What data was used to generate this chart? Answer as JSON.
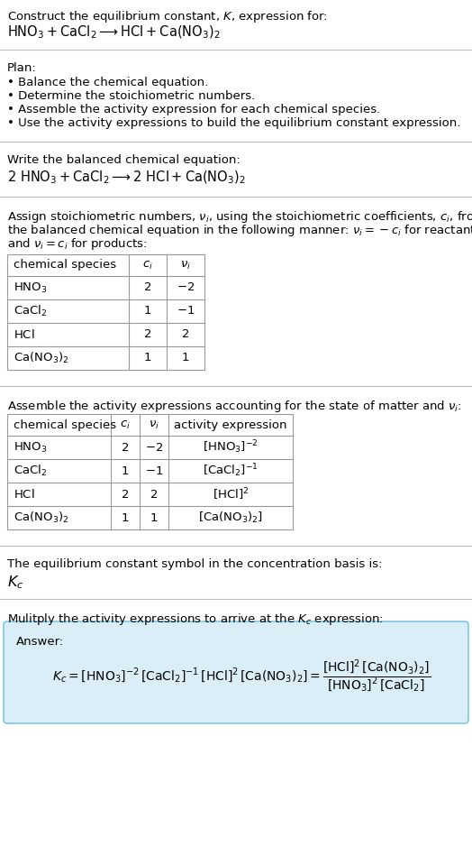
{
  "title_line1": "Construct the equilibrium constant, $K$, expression for:",
  "title_line2": "$\\mathrm{HNO_3 + CaCl_2 \\longrightarrow HCl + Ca(NO_3)_2}$",
  "plan_header": "Plan:",
  "plan_bullets": [
    "• Balance the chemical equation.",
    "• Determine the stoichiometric numbers.",
    "• Assemble the activity expression for each chemical species.",
    "• Use the activity expressions to build the equilibrium constant expression."
  ],
  "balanced_header": "Write the balanced chemical equation:",
  "balanced_eq": "$\\mathrm{2\\ HNO_3 + CaCl_2 \\longrightarrow 2\\ HCl + Ca(NO_3)_2}$",
  "stoich_lines": [
    "Assign stoichiometric numbers, $\\nu_i$, using the stoichiometric coefficients, $c_i$, from",
    "the balanced chemical equation in the following manner: $\\nu_i = -c_i$ for reactants",
    "and $\\nu_i = c_i$ for products:"
  ],
  "table1_cols": [
    "chemical species",
    "$c_i$",
    "$\\nu_i$"
  ],
  "table1_rows": [
    [
      "$\\mathrm{HNO_3}$",
      "2",
      "$-2$"
    ],
    [
      "$\\mathrm{CaCl_2}$",
      "1",
      "$-1$"
    ],
    [
      "$\\mathrm{HCl}$",
      "2",
      "2"
    ],
    [
      "$\\mathrm{Ca(NO_3)_2}$",
      "1",
      "1"
    ]
  ],
  "activity_header": "Assemble the activity expressions accounting for the state of matter and $\\nu_i$:",
  "table2_cols": [
    "chemical species",
    "$c_i$",
    "$\\nu_i$",
    "activity expression"
  ],
  "table2_rows": [
    [
      "$\\mathrm{HNO_3}$",
      "2",
      "$-2$",
      "$[\\mathrm{HNO_3}]^{-2}$"
    ],
    [
      "$\\mathrm{CaCl_2}$",
      "1",
      "$-1$",
      "$[\\mathrm{CaCl_2}]^{-1}$"
    ],
    [
      "$\\mathrm{HCl}$",
      "2",
      "2",
      "$[\\mathrm{HCl}]^{2}$"
    ],
    [
      "$\\mathrm{Ca(NO_3)_2}$",
      "1",
      "1",
      "$[\\mathrm{Ca(NO_3)_2}]$"
    ]
  ],
  "kc_header": "The equilibrium constant symbol in the concentration basis is:",
  "kc_symbol": "$K_c$",
  "multiply_header": "Mulitply the activity expressions to arrive at the $K_c$ expression:",
  "answer_label": "Answer:",
  "kc_expr_left": "$K_c = [\\mathrm{HNO_3}]^{-2}\\,[\\mathrm{CaCl_2}]^{-1}\\,[\\mathrm{HCl}]^2\\,[\\mathrm{Ca(NO_3)_2}] = \\dfrac{[\\mathrm{HCl}]^2\\,[\\mathrm{Ca(NO_3)_2}]}{[\\mathrm{HNO_3}]^2\\,[\\mathrm{CaCl_2}]}$",
  "bg_color": "#ffffff",
  "table_border_color": "#999999",
  "answer_bg_color": "#daeef8",
  "answer_border_color": "#7ec8e3",
  "text_color": "#000000",
  "font_size": 9.5,
  "divider_color": "#bbbbbb"
}
